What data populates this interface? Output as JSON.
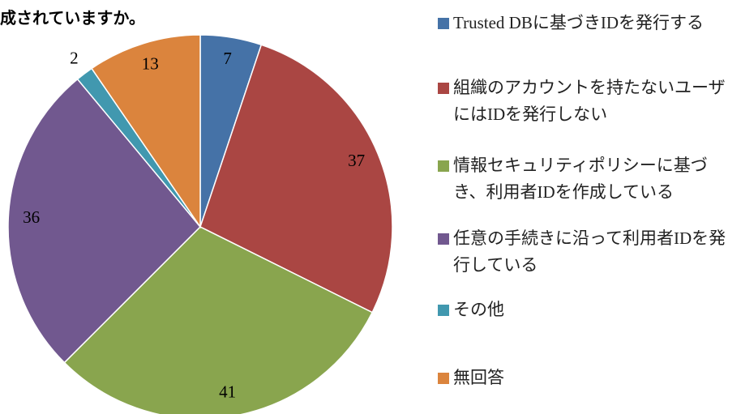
{
  "chart_data": {
    "type": "pie",
    "title": "成されていますか。",
    "categories": [
      "Trusted DBに基づきIDを発行する",
      "組織のアカウントを持たないユーザにはIDを発行しない",
      "情報セキュリティポリシーに基づき、利用者IDを作成している",
      "任意の手続きに沿って利用者IDを発行している",
      "その他",
      "無回答"
    ],
    "values": [
      7,
      37,
      41,
      36,
      2,
      13
    ],
    "colors": [
      "#4572a7",
      "#aa4643",
      "#89a54e",
      "#71588f",
      "#4198af",
      "#db843d"
    ],
    "legend": "right"
  }
}
